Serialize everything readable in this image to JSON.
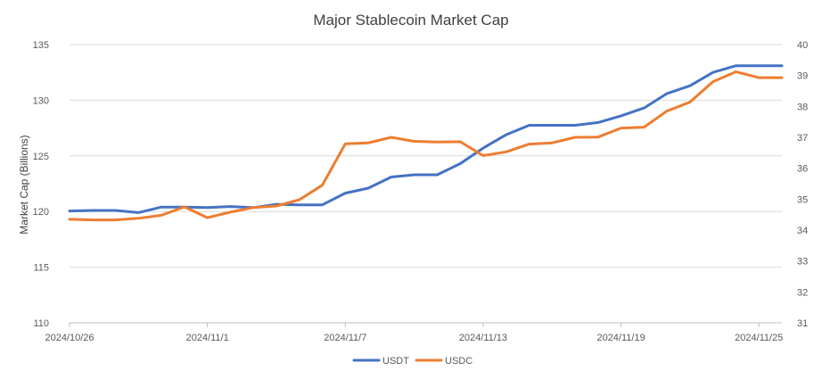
{
  "chart_data": {
    "type": "line",
    "title": "Major Stablecoin Market Cap",
    "ylabel": "Market Cap (Billions)",
    "y2label": "",
    "ylim": [
      110,
      135
    ],
    "y2lim": [
      31,
      40
    ],
    "yticks": [
      110,
      115,
      120,
      125,
      130,
      135
    ],
    "y2ticks": [
      31,
      32,
      33,
      34,
      35,
      36,
      37,
      38,
      39,
      40
    ],
    "xlim": [
      "2024/10/26",
      "2024/11/26"
    ],
    "xticks": [
      "2024/10/26",
      "2024/11/1",
      "2024/11/7",
      "2024/11/13",
      "2024/11/19",
      "2024/11/25"
    ],
    "grid": "horizontal",
    "legend": "bottom",
    "series": [
      {
        "name": "USDT",
        "axis": "left",
        "color": "#4472C4",
        "x": [
          "2024/10/26",
          "2024/10/27",
          "2024/10/28",
          "2024/10/29",
          "2024/10/30",
          "2024/10/31",
          "2024/11/1",
          "2024/11/2",
          "2024/11/3",
          "2024/11/4",
          "2024/11/5",
          "2024/11/6",
          "2024/11/7",
          "2024/11/8",
          "2024/11/9",
          "2024/11/10",
          "2024/11/11",
          "2024/11/12",
          "2024/11/13",
          "2024/11/14",
          "2024/11/15",
          "2024/11/16",
          "2024/11/17",
          "2024/11/18",
          "2024/11/19",
          "2024/11/20",
          "2024/11/21",
          "2024/11/22",
          "2024/11/23",
          "2024/11/24",
          "2024/11/25",
          "2024/11/26"
        ],
        "values": [
          120.05,
          120.1,
          120.1,
          119.9,
          120.4,
          120.4,
          120.35,
          120.45,
          120.35,
          120.65,
          120.6,
          120.6,
          121.65,
          122.1,
          123.1,
          123.3,
          123.3,
          124.3,
          125.7,
          126.9,
          127.75,
          127.75,
          127.75,
          128.0,
          128.6,
          129.3,
          130.6,
          131.3,
          132.5,
          133.1,
          133.1,
          133.1
        ]
      },
      {
        "name": "USDC",
        "axis": "right",
        "color": "#ED7D31",
        "x": [
          "2024/10/26",
          "2024/10/27",
          "2024/10/28",
          "2024/10/29",
          "2024/10/30",
          "2024/10/31",
          "2024/11/1",
          "2024/11/2",
          "2024/11/3",
          "2024/11/4",
          "2024/11/5",
          "2024/11/6",
          "2024/11/7",
          "2024/11/8",
          "2024/11/9",
          "2024/11/10",
          "2024/11/11",
          "2024/11/12",
          "2024/11/13",
          "2024/11/14",
          "2024/11/15",
          "2024/11/16",
          "2024/11/17",
          "2024/11/18",
          "2024/11/19",
          "2024/11/20",
          "2024/11/21",
          "2024/11/22",
          "2024/11/23",
          "2024/11/24",
          "2024/11/25",
          "2024/11/26"
        ],
        "values": [
          34.35,
          34.33,
          34.33,
          34.38,
          34.48,
          34.75,
          34.4,
          34.58,
          34.73,
          34.78,
          34.98,
          35.45,
          36.79,
          36.82,
          37.0,
          36.87,
          36.85,
          36.86,
          36.41,
          36.53,
          36.78,
          36.82,
          37.0,
          37.01,
          37.3,
          37.33,
          37.85,
          38.14,
          38.8,
          39.12,
          38.93,
          38.93
        ]
      }
    ]
  }
}
